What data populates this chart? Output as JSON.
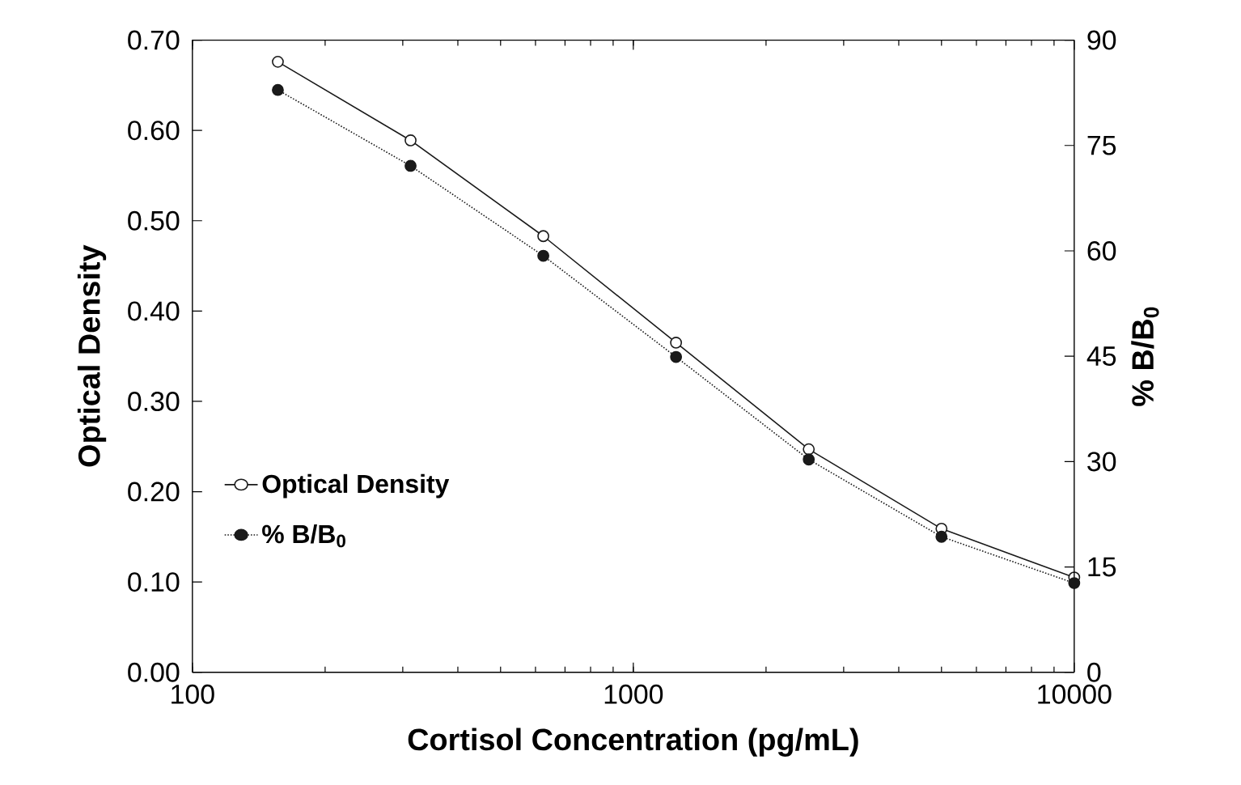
{
  "chart_data": {
    "type": "line",
    "xlabel": "Cortisol Concentration (pg/mL)",
    "ylabel": "Optical Density",
    "y2label": "% B/B$_{0}$",
    "log": "x",
    "xlim": [
      100,
      10000
    ],
    "xticks": [
      100,
      1000,
      10000
    ],
    "ylim": [
      0,
      0.7
    ],
    "yticks": [
      {
        "value": 0,
        "label": "0.00"
      },
      {
        "value": 0.1,
        "label": "0.10"
      },
      {
        "value": 0.2,
        "label": "0.20"
      },
      {
        "value": 0.3,
        "label": "0.30"
      },
      {
        "value": 0.4,
        "label": "0.40"
      },
      {
        "value": 0.5,
        "label": "0.50"
      },
      {
        "value": 0.6,
        "label": "0.60"
      },
      {
        "value": 0.7,
        "label": "0.70"
      }
    ],
    "y2lim": [
      0,
      90
    ],
    "y2ticks": [
      0,
      15,
      30,
      45,
      60,
      75,
      90
    ],
    "x": [
      156.25,
      312.5,
      625,
      1250,
      2500,
      5000,
      10000
    ],
    "legend": "bottom left",
    "grid": false,
    "marker": "circle",
    "series": [
      {
        "name": "Optical Density",
        "color": "#1a1a1a",
        "line_style": "solid",
        "values": [
          0.676,
          0.589,
          0.483,
          0.365,
          0.247,
          0.159,
          0.105
        ]
      },
      {
        "name": "% B/B$_{0}$",
        "color": "#1a1a1a",
        "line_style": "dotted",
        "axis": "y2",
        "values": [
          82.9,
          72.1,
          59.3,
          44.9,
          30.3,
          19.3,
          12.7
        ]
      }
    ]
  }
}
